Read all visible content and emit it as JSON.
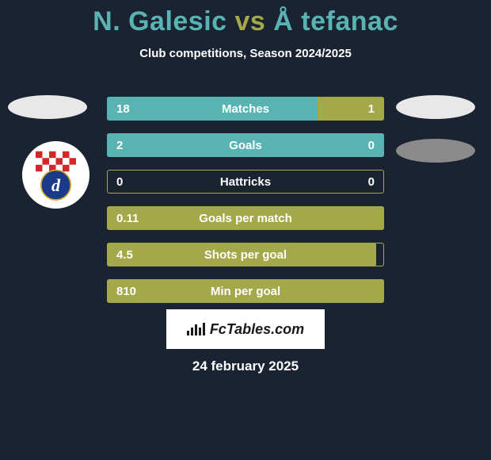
{
  "title": {
    "player1": "N. Galesic",
    "vs": "vs",
    "player2": "Å tefanac",
    "player1_color": "#5ab3b3",
    "vs_color": "#a3a84a",
    "player2_color": "#5ab3b3"
  },
  "subtitle": "Club competitions, Season 2024/2025",
  "rows": [
    {
      "label": "Matches",
      "left": "18",
      "right": "1",
      "left_pct": 76,
      "right_pct": 24,
      "fill": "split",
      "left_color": "#5ab3b3",
      "right_color": "#a3a84a",
      "border": "#a3a84a"
    },
    {
      "label": "Goals",
      "left": "2",
      "right": "0",
      "left_pct": 100,
      "right_pct": 0,
      "fill": "left",
      "left_color": "#5ab3b3",
      "right_color": "#a3a84a",
      "border": "#a3a84a"
    },
    {
      "label": "Hattricks",
      "left": "0",
      "right": "0",
      "left_pct": 0,
      "right_pct": 0,
      "fill": "none",
      "left_color": "#5ab3b3",
      "right_color": "#a3a84a",
      "border": "#a3a84a"
    },
    {
      "label": "Goals per match",
      "left": "0.11",
      "right": "",
      "left_pct": 100,
      "right_pct": 0,
      "fill": "left-olive",
      "left_color": "#a3a84a",
      "right_color": "#a3a84a",
      "border": "#a3a84a"
    },
    {
      "label": "Shots per goal",
      "left": "4.5",
      "right": "",
      "left_pct": 97,
      "right_pct": 0,
      "fill": "left-olive",
      "left_color": "#a3a84a",
      "right_color": "#a3a84a",
      "border": "#a3a84a"
    },
    {
      "label": "Min per goal",
      "left": "810",
      "right": "",
      "left_pct": 100,
      "right_pct": 0,
      "fill": "left-olive",
      "left_color": "#a3a84a",
      "right_color": "#a3a84a",
      "border": "#a3a84a"
    }
  ],
  "footer_brand": "FcTables.com",
  "date": "24 february 2025",
  "colors": {
    "background": "#1a2332",
    "teal": "#5ab3b3",
    "olive": "#a3a84a",
    "white": "#ffffff"
  }
}
